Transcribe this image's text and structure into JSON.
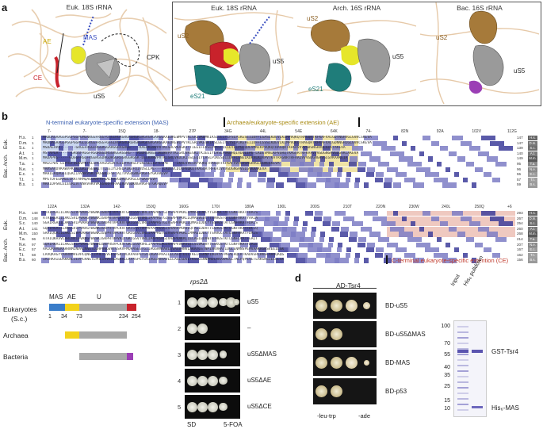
{
  "panels": {
    "a": "a",
    "b": "b",
    "c": "c",
    "d": "d"
  },
  "panel_a": {
    "structures": [
      {
        "title": "Euk. 18S rRNA",
        "labels": [
          "AE",
          "MAS",
          "CPK",
          "CE",
          "uS5"
        ]
      },
      {
        "title": "Euk. 18S rRNA",
        "labels": [
          "uS2",
          "uS5",
          "eS21"
        ]
      },
      {
        "title": "Arch. 16S rRNA",
        "labels": [
          "uS2",
          "uS5",
          "eS21"
        ]
      },
      {
        "title": "Bac. 16S rRNA",
        "labels": [
          "uS2",
          "uS5"
        ]
      }
    ]
  },
  "panel_b": {
    "mas_title": "N-terminal eukaryote-specific extension (MAS)",
    "ae_title": "Archaea/eukaryote-specific extension (AE)",
    "ce_title": "C-terminal eukaryote-specific extention (CE)",
    "groups": {
      "euk": "Euk.",
      "arch": "Arch.",
      "bac": "Bac."
    },
    "top_ruler": [
      "7-",
      "7-",
      "15Q",
      "18-",
      "27P",
      "34G",
      "44L",
      "54E",
      "64K",
      "74-",
      "82N",
      "92A",
      "102V",
      "112G"
    ],
    "bottom_ruler": [
      "122A",
      "132A",
      "142-",
      "150Q",
      "160G",
      "170I",
      "180A",
      "190L",
      "200S",
      "210T",
      "220N",
      "230W",
      "240L",
      "250Q",
      "+6"
    ],
    "top_rows": [
      {
        "name": "H.s.",
        "start": "1",
        "seq": "MADDAGAAGGPGGPGGPGMGNRGGFRGGFGSGIRGRGRGRGRGRGRGRGRGARGGKAEDKEWMPVTKLGRLVKDMKIKSLEEIYLFSLPIKESEIIDFFLGASLKDEVLKIMPVQKQTRAGQRTRFKAFVAIGDYNGHVGLGVKCSKEVA",
        "end": "147",
        "tag": "H.s."
      },
      {
        "name": "D.m.",
        "start": "1",
        "seq": "MADDAGAAGGPGGPGGPGLGGRGGFRGGFGSGLRGRGRGRGRGRGRGRGRGARGGKAEDKEWIPVTKLGRLVKEGKIKSLEEIYLYSLPIKEFEIIDFFLGSSLKDEVLKIMPVQKQTRAGQRTRFKAFVAIGDNNGHIGLGVKCSKEVA",
        "end": "147",
        "tag": "D.m."
      },
      {
        "name": "S.c.",
        "start": "1",
        "seq": "MSDAEAPA-------GRGGFRGGFRGGRGGARGGRAGRGG----KAEDKEWVPVTKLGRLVKAGKITTIEEIFLHSLPVKEFQIIDTLLPGLQDEVMNIKPVQKQTRAGQRTRFKAVVVVGDSNGHVGLGIKTAKEVA",
        "end": "139",
        "tag": "S.c."
      },
      {
        "name": "A.t.",
        "start": "1",
        "seq": "MS-APEA------GRGGFRGGFRGGRGGDRGGRGGRGGRG---RGDRGRKEEIKEWVPVTKLGRLVKEGKITKIEEIYLHSLPVKEHQIVDQLIPG-LKDEVMNIKPVQRQTRAGQRTRFKAFVVVGDGNGHVGLGVKCAKEVA",
        "end": "140",
        "tag": "A.t."
      },
      {
        "name": "M.m.",
        "start": "1",
        "seq": "MADAPRG-----GQGGFRGGFRGGRGGDRGQRGGRGGRGGRGGK-DEEKRWVPVTKLGRLVKDLKISSLEQIYLHSLPIKESQIIDFFLGNELKDKVLKIKPVTKATRAGNRTRFAAIVVVGDGNGHVGLGVKAAKEIA",
        "end": "149",
        "tag": "M.m."
      },
      {
        "name": "T.a.",
        "start": "1",
        "seq": "MAECPDS-LEPREFQEWVPKTKLGRLVAEGRIKTLEEVYLHSLPIKESEIIDTLLPN----LKAEVVEIRPVQKQTRAGQRTRFKAFVVVGDGNGHVGLGLKCSKEVA",
        "end": "95",
        "tag": "T.a."
      },
      {
        "name": "N.e.",
        "start": "1",
        "seq": "MAMSAVDVKAWVPKTKLGRLVSEGKITTLEEIYLHSLPIKEFQIVDSLLPE----LKDEVLDIKPVQKQTRAGQRTRFKAIVVVGDGNGHVGLGVKAAKEVA",
        "end": "96",
        "tag": "N.e."
      },
      {
        "name": "E.c.",
        "start": "1",
        "seq": "MAHIEKQAGELQEKLIAVNRVSKTVKGGRIFSFTALTVVGDGNGRVGFGYGKAREVP",
        "end": "55",
        "tag": "E.c."
      },
      {
        "name": "T.t.",
        "start": "1",
        "seq": "MPETDFEEKMILIRRTARMQAGGRRFRFGALVVVGDRQGRVGLGFGKAPEVP",
        "end": "57",
        "tag": "T.t."
      },
      {
        "name": "B.s.",
        "start": "1",
        "seq": "MRRIDPSKLELEERLVTVNRVAKVVKGGRRFRFAALVVVGDKNGHVGFGTGKAQEVP",
        "end": "59",
        "tag": "B.s."
      }
    ],
    "bottom_rows": [
      {
        "name": "H.s.",
        "start": "148",
        "seq": "ATAIRGAIILAKLSIVPVRRGYWGNKIGKPHTVPCKVTGRCGSVLVRLIPAPRGTGIVSAPVPKKLLMMAGIDDCYTSARGCTATLGNFAKATFDAIS",
        "end": "293",
        "tag": "H.s."
      },
      {
        "name": "D.m.",
        "start": "148",
        "seq": "ATAIRGAIILAKLSVLPVRRGYWGNKIGKPHTVPCKVTGKCGSVTVRLIPAPRGTGIVSAPVPKKLLQMAGVEDCYTSARGSTGTLGNFAKATYAAIA",
        "end": "267",
        "tag": "D.m."
      },
      {
        "name": "S.c.",
        "start": "140",
        "seq": "SGAIRGAIILAKLSVIPVRRGYWGNKIGKPHTVPCKVTGKCGSVLVRLIPAPRGTGIVSAPVPKKLLQMAGIDDCYTSSRGSTATLGNFAKATFDAIS",
        "end": "254",
        "tag": "S.c."
      },
      {
        "name": "A.t.",
        "start": "141",
        "seq": "SQAIRGAIILAKLSVIPVRRGYWGNKIGKPHTVPCKVTGKCGSVTVRMVPAPRGSGIVAARVPKKVLQFAGIDDVFTSSRGSTKTLGNFVKATFDCLQ",
        "end": "260",
        "tag": "A.t."
      },
      {
        "name": "M.m.",
        "start": "150",
        "seq": "SAAIQGAIILAKLSIVPVRRGYWGNKIGQPHTVPCKVTGRCGSVLVRLIPAPRGTGIVSAPVPKKLLMMAGIDDCYTSARGCTATLGNFAKATFDAIS",
        "end": "268",
        "tag": "M.m."
      },
      {
        "name": "T.a.",
        "start": "96",
        "seq": "ATAIQKAVVLARLNVIPVRRGYWGSKIGKPHTVPVKITGKCGSVTVRLIPAPRGKGIVAAPVAKKLLELAGIEDVWTSTRGSTKTLGNFLRATFEALT",
        "end": "214",
        "tag": "T.a."
      },
      {
        "name": "N.e.",
        "start": "97",
        "seq": "SQAIRKAIILAKLSVIPVRRGYWGSNIGKPHSVPCKVTGKCGSVRVRLIPAPRGAGIVAAPVVKKVLELSGVKDVFTSSKGSTKTLGNFVKATFDALE",
        "end": "207",
        "tag": "N.e."
      },
      {
        "name": "E.c.",
        "start": "57",
        "seq": "AAIQKAMEKARRNMINVALNNGTLQHPVKGVHTGSRVFMQPASEGTGIIAGGAMRAVLEVAGVHNVLAKAYGSTNPINVVRATIDGLENMNSPEMVAAKRGKSVEEILGK",
        "end": "167",
        "tag": "E.c."
      },
      {
        "name": "T.t.",
        "start": "58",
        "seq": "LAVQKAGYYARRNMVEVPLQNGTIPHEIEVEFGASKIVLKPAAPGTGVIAGAVPRAILELAGVTDILTKELGSRNPINIAYATMEALRQLRTKADVERLRKGEAHAQAQG",
        "end": "162",
        "tag": "T.t."
      },
      {
        "name": "B.s.",
        "start": "60",
        "seq": "IAIRKAIEDAKKNLIEVPLKNGTLPHEIKVEAGASNVILKPASPGTGVIAGGAVRAVLELAGLSDVLTKSLGSNNPNVLAKAAMEGLTKLPQPEVETLRKGKSIEELLGK",
        "end": "156",
        "tag": "B.s."
      }
    ]
  },
  "panel_c": {
    "domains": {
      "mas": "MAS",
      "ae": "AE",
      "u": "U",
      "ce": "CE"
    },
    "rows": {
      "euk": "Eukaryotes",
      "euk_sub": "(S.c.)",
      "arch": "Archaea",
      "bac": "Bacteria"
    },
    "positions": [
      "1",
      "34",
      "73",
      "234",
      "254"
    ],
    "plate_title": "rps2Δ",
    "plate_rows": [
      {
        "idx": "1",
        "label": "uS5"
      },
      {
        "idx": "2",
        "label": "–"
      },
      {
        "idx": "3",
        "label": "uS5ΔMAS"
      },
      {
        "idx": "4",
        "label": "uS5ΔAE"
      },
      {
        "idx": "5",
        "label": "uS5ΔCE"
      }
    ],
    "plate_bottom": {
      "sd": "SD",
      "foa": "5-FOA"
    }
  },
  "panel_d": {
    "plate_title": "AD-Tsr4",
    "rows": [
      "BD-uS5",
      "BD-uS5ΔMAS",
      "BD-MAS",
      "BD-p53"
    ],
    "bottom": {
      "left": "-leu-trp",
      "right": "-ade"
    },
    "gel_cols": {
      "input": "Input",
      "pulldown": "His₆ pulldown"
    },
    "markers": [
      "100",
      "70",
      "55",
      "40",
      "35",
      "25",
      "15",
      "10"
    ],
    "bands": {
      "gst": "GST-Tsr4",
      "his": "His₆-MAS"
    }
  },
  "colors": {
    "mas": "#3a7dc9",
    "ae": "#f2d21b",
    "u": "#a8a8a8",
    "ce": "#c8222b",
    "bac": "#9b3fb5",
    "mas_bg": "#c9d6ef",
    "ae_bg": "#efe3a6",
    "ce_bg": "#efc9c0",
    "align_dark": "#3d3d9a",
    "align_mid": "#7d7dc4"
  }
}
